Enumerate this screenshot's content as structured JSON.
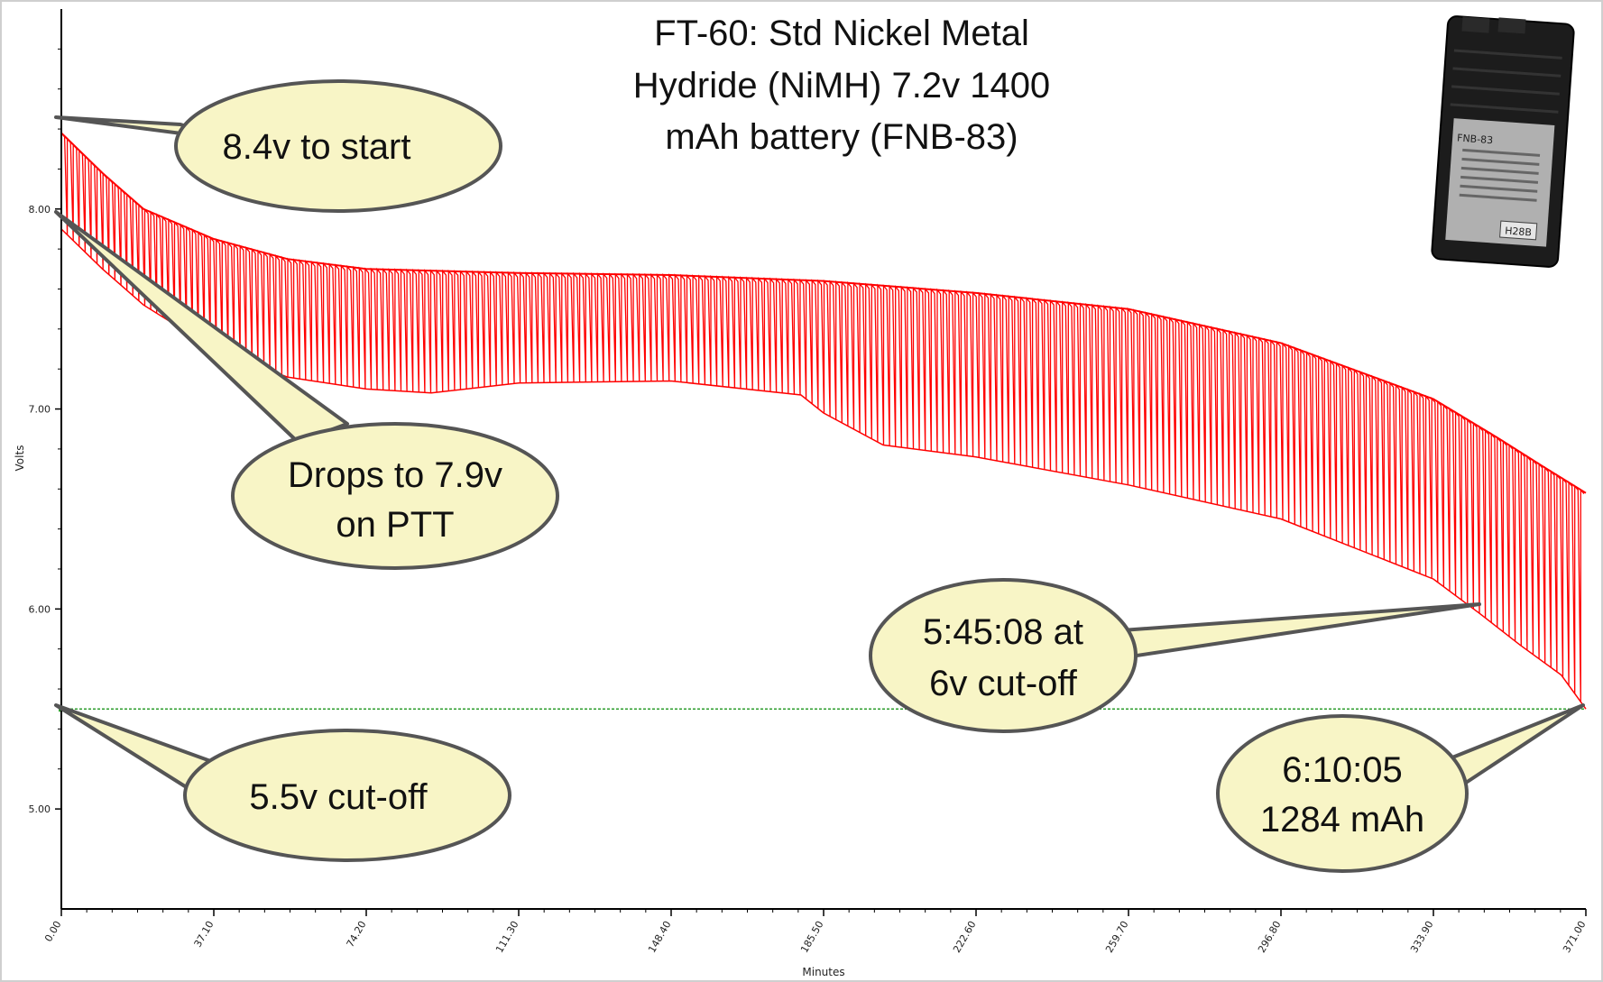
{
  "chart_data": {
    "type": "line",
    "title": [
      "FT-60: Std Nickel Metal",
      "Hydride (NiMH) 7.2v 1400",
      "mAh battery (FNB-83)"
    ],
    "xlabel": "Minutes",
    "ylabel": "Volts",
    "xlim": [
      0,
      371
    ],
    "ylim": [
      4.5,
      9.0
    ],
    "x_ticks": [
      "0.00",
      "37.10",
      "74.20",
      "111.30",
      "148.40",
      "185.50",
      "222.60",
      "259.70",
      "296.80",
      "333.90",
      "371.00"
    ],
    "y_ticks": [
      "5.00",
      "6.00",
      "7.00",
      "8.00"
    ],
    "grid": false,
    "colors": {
      "series": "#ff0000",
      "cutoff": "#2e9e2e"
    },
    "series": [
      {
        "role": "idle_voltage_envelope",
        "x": [
          0,
          10,
          20,
          37.1,
          55,
          74.2,
          111.3,
          148.4,
          185.5,
          222.6,
          259.7,
          296.8,
          333.9,
          350,
          360,
          371
        ],
        "y": [
          8.38,
          8.18,
          8.0,
          7.85,
          7.75,
          7.7,
          7.68,
          7.67,
          7.64,
          7.58,
          7.5,
          7.33,
          7.05,
          6.85,
          6.72,
          6.58
        ]
      },
      {
        "role": "ptt_voltage_envelope",
        "x": [
          0,
          10,
          20,
          37.1,
          55,
          74.2,
          90,
          111.3,
          148.4,
          180,
          185.5,
          200,
          222.6,
          259.7,
          296.8,
          333.9,
          345,
          355,
          365,
          371
        ],
        "y": [
          7.9,
          7.7,
          7.52,
          7.3,
          7.16,
          7.1,
          7.08,
          7.13,
          7.14,
          7.07,
          6.98,
          6.82,
          6.76,
          6.62,
          6.45,
          6.15,
          5.98,
          5.82,
          5.67,
          5.5
        ]
      },
      {
        "role": "cutoff_line",
        "x": [
          0,
          371
        ],
        "y": [
          5.5,
          5.5
        ]
      }
    ],
    "annotations": [
      {
        "id": "start",
        "lines": [
          "8.4v to start"
        ]
      },
      {
        "id": "ptt",
        "lines": [
          "Drops to 7.9v",
          "on PTT"
        ]
      },
      {
        "id": "sixv",
        "lines": [
          "5:45:08 at",
          "6v cut-off"
        ]
      },
      {
        "id": "cutoff",
        "lines": [
          "5.5v cut-off"
        ]
      },
      {
        "id": "end",
        "lines": [
          "6:10:05",
          "1284 mAh"
        ]
      }
    ]
  },
  "battery_image": {
    "label_text": "FNB-83",
    "sub_label": "H28B"
  }
}
